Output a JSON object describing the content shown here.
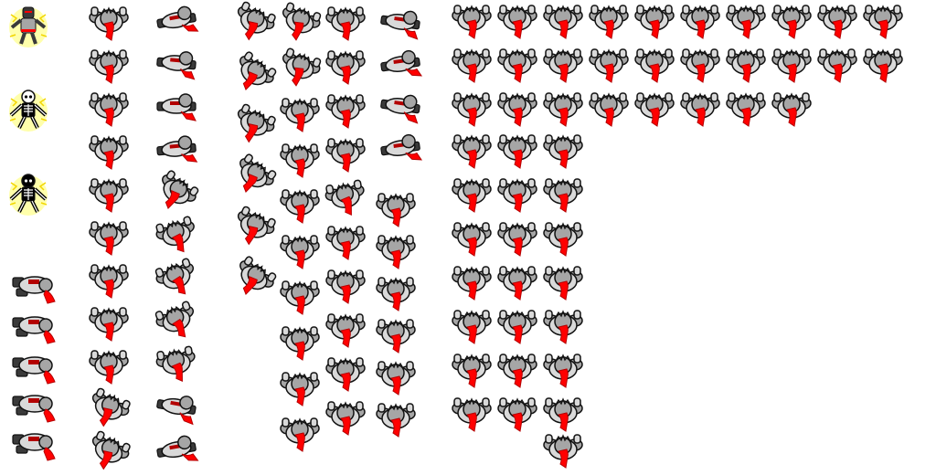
{
  "sheet": {
    "kind": "sprite-sheet",
    "background_color": "#ffffff",
    "palette": {
      "armor_light": "#d9d9d9",
      "armor_mid": "#a6a6a6",
      "armor_dark": "#3a3a3a",
      "outline": "#111111",
      "plume": "#ff0000",
      "plume_dark": "#b30000",
      "skeleton_bone": "#ffffff",
      "skeleton_body": "#000000",
      "electric_glow": "#ffff66"
    },
    "groups": [
      {
        "name": "electrocuted-frames",
        "sprite": "electrocuted",
        "frames": [
          "knight-shock",
          "skeleton-light",
          "skeleton-dark"
        ]
      },
      {
        "name": "lying-frames",
        "sprite": "knight-lying",
        "count": 5
      },
      {
        "name": "topdown-walk-frames",
        "sprite": "knight-topdown",
        "count": 112
      },
      {
        "name": "side-crawl-frames",
        "sprite": "knight-side",
        "count": 17
      }
    ]
  }
}
